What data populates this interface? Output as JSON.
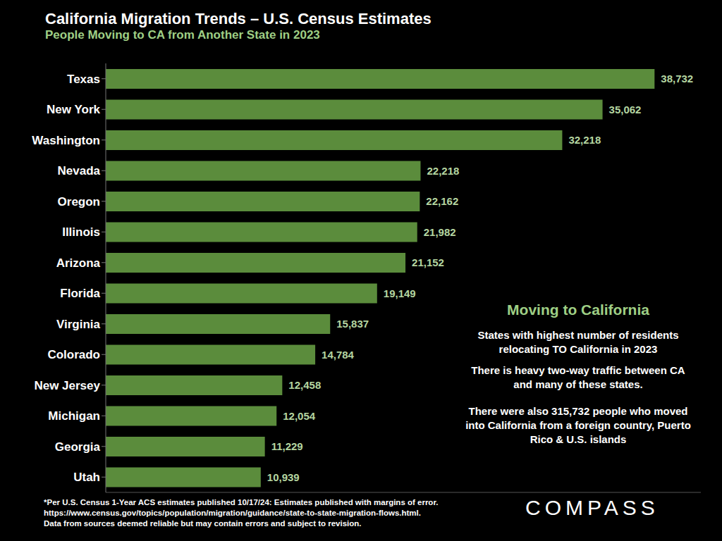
{
  "chart_data": {
    "type": "bar",
    "title": "California Migration Trends – U.S. Census Estimates",
    "subtitle": "People Moving to CA from Another State in 2023",
    "orientation": "horizontal",
    "categories": [
      "Texas",
      "New York",
      "Washington",
      "Nevada",
      "Oregon",
      "Illinois",
      "Arizona",
      "Florida",
      "Virginia",
      "Colorado",
      "New Jersey",
      "Michigan",
      "Georgia",
      "Utah"
    ],
    "values": [
      38732,
      35062,
      32218,
      22218,
      22162,
      21982,
      21152,
      19149,
      15837,
      14784,
      12458,
      12054,
      11229,
      10939
    ],
    "value_labels": [
      "38,732",
      "35,062",
      "32,218",
      "22,218",
      "22,162",
      "21,982",
      "21,152",
      "19,149",
      "15,837",
      "14,784",
      "12,458",
      "12,054",
      "11,229",
      "10,939"
    ],
    "color": "#5b8c3c",
    "xlim": [
      0,
      42000
    ],
    "grid": false,
    "data_labels": true,
    "tick_labels": "y",
    "annotations": [
      "Moving to California",
      "States with highest number of residents relocating TO California in 2023",
      "There is heavy two-way traffic between CA and many of these states.",
      "There were also 315,732 people who moved into California from a foreign country, Puerto Rico & U.S. islands"
    ],
    "footnote": [
      "*Per U.S. Census 1-Year ACS estimates published 10/17/24: Estimates published with margins of error.",
      "https://www.census.gov/topics/population/migration/guidance/state-to-state-migration-flows.html.",
      "Data from sources deemed reliable but may contain errors and subject to revision."
    ],
    "logo": "COMPASS"
  }
}
